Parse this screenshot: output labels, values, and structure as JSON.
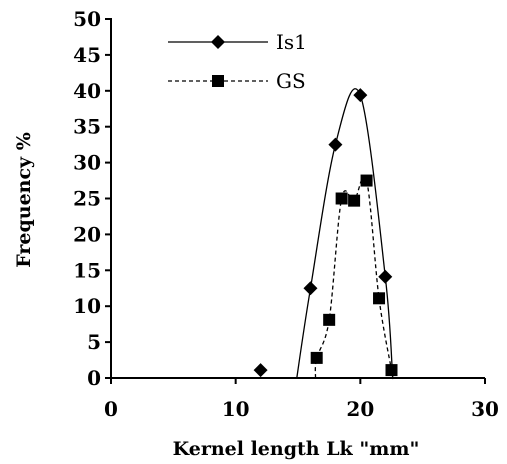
{
  "chart_data": {
    "type": "line",
    "title": "",
    "xlabel": "Kernel length Lk \"mm\"",
    "ylabel": "Frequency %",
    "xlim": [
      0,
      30
    ],
    "ylim": [
      0,
      50
    ],
    "x_ticks": [
      0,
      10,
      20,
      30
    ],
    "y_ticks": [
      0,
      5,
      10,
      15,
      20,
      25,
      30,
      35,
      40,
      45,
      50
    ],
    "grid": false,
    "legend_position": "top-left",
    "series": [
      {
        "name": "Is1",
        "line_style": "solid",
        "marker": "diamond",
        "color": "#000000",
        "points": [
          {
            "x": 12,
            "y": 1.1
          },
          {
            "x": 16,
            "y": 12.5
          },
          {
            "x": 18,
            "y": 32.5
          },
          {
            "x": 20,
            "y": 39.4
          },
          {
            "x": 22,
            "y": 14.1
          }
        ],
        "curve": [
          {
            "x": 14.9,
            "y": 0
          },
          {
            "x": 16,
            "y": 12.5
          },
          {
            "x": 18,
            "y": 32.5
          },
          {
            "x": 20,
            "y": 39.4
          },
          {
            "x": 22,
            "y": 14.1
          },
          {
            "x": 22.6,
            "y": 0
          }
        ]
      },
      {
        "name": "GS",
        "line_style": "dashed",
        "marker": "square",
        "color": "#000000",
        "points": [
          {
            "x": 16.5,
            "y": 2.8
          },
          {
            "x": 17.5,
            "y": 8.1
          },
          {
            "x": 18.5,
            "y": 25.0
          },
          {
            "x": 19.5,
            "y": 24.7
          },
          {
            "x": 20.5,
            "y": 27.5
          },
          {
            "x": 21.5,
            "y": 11.1
          },
          {
            "x": 22.5,
            "y": 1.1
          }
        ],
        "curve": [
          {
            "x": 16.4,
            "y": 0
          },
          {
            "x": 16.5,
            "y": 2.8
          },
          {
            "x": 17.5,
            "y": 8.1
          },
          {
            "x": 18.5,
            "y": 25.0
          },
          {
            "x": 19.5,
            "y": 24.7
          },
          {
            "x": 20.5,
            "y": 27.5
          },
          {
            "x": 21.5,
            "y": 11.1
          },
          {
            "x": 22.5,
            "y": 1.1
          },
          {
            "x": 22.6,
            "y": 0
          }
        ]
      }
    ]
  }
}
